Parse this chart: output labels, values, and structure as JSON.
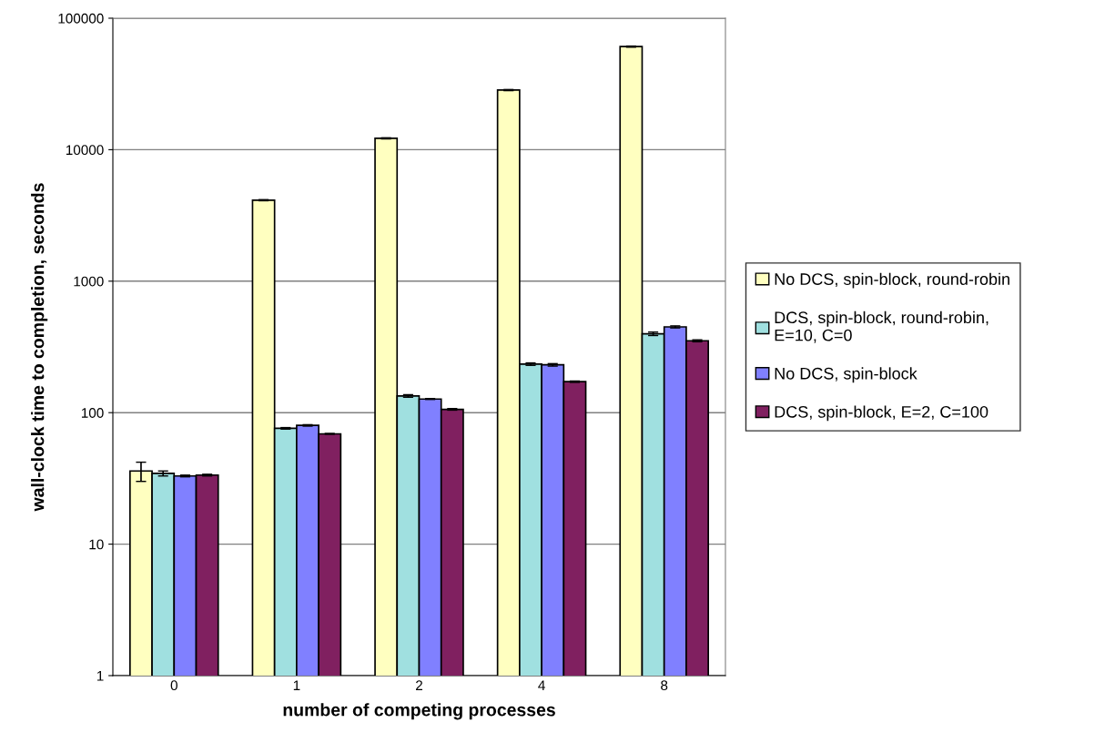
{
  "chart_data": {
    "type": "bar",
    "xlabel": "number of competing processes",
    "ylabel": "wall-clock time to completion, seconds",
    "categories": [
      "0",
      "1",
      "2",
      "4",
      "8"
    ],
    "series": [
      {
        "name": "No DCS, spin-block, round-robin",
        "color": "#ffffc0",
        "values": [
          36,
          4130,
          12200,
          28400,
          60800
        ],
        "errors": [
          6,
          40,
          120,
          280,
          600
        ]
      },
      {
        "name": "DCS, spin-block, round-robin, E=10, C=0",
        "color": "#a0e0e0",
        "values": [
          34.5,
          76,
          134,
          234,
          398
        ],
        "errors": [
          1.5,
          1,
          3,
          5,
          12
        ]
      },
      {
        "name": "No DCS, spin-block",
        "color": "#8080ff",
        "values": [
          33,
          80,
          127,
          231,
          449
        ],
        "errors": [
          0.5,
          1,
          1,
          5,
          8
        ]
      },
      {
        "name": "DCS, spin-block, E=2, C=100",
        "color": "#802060",
        "values": [
          33.5,
          69,
          106,
          172,
          352
        ],
        "errors": [
          0.5,
          0.5,
          1.5,
          2,
          6
        ]
      }
    ],
    "log": "y",
    "ylim": [
      1,
      100000
    ],
    "yticks": [
      1,
      10,
      100,
      1000,
      10000,
      100000
    ],
    "grid": "y",
    "legend": "right"
  }
}
